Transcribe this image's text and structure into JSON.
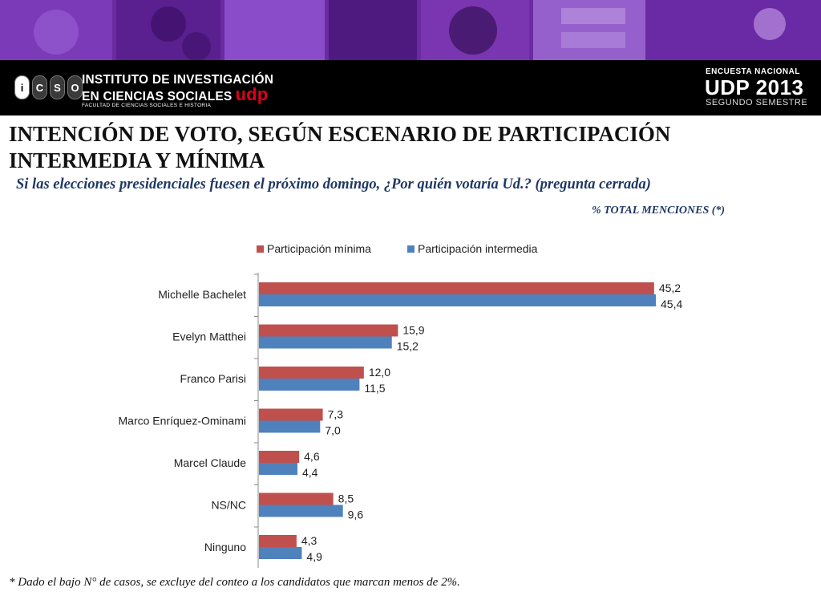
{
  "header": {
    "logo_letters": [
      "i",
      "C",
      "S",
      "O"
    ],
    "institute_line1": "INSTITUTO DE INVESTIGACIÓN",
    "institute_line2": "EN CIENCIAS SOCIALES",
    "institute_brand": "udp",
    "faculty": "FACULTAD DE CIENCIAS SOCIALES E HISTORIA",
    "survey_label": "ENCUESTA NACIONAL",
    "survey_year": "UDP 2013",
    "survey_semester": "SEGUNDO SEMESTRE"
  },
  "title": "INTENCIÓN DE VOTO, SEGÚN ESCENARIO DE PARTICIPACIÓN INTERMEDIA Y MÍNIMA",
  "subtitle": "Si las elecciones presidenciales fuesen el próximo domingo, ¿Por quién votaría Ud.? (pregunta cerrada)",
  "note": "% TOTAL MENCIONES (*)",
  "footnote": "* Dado el bajo N° de casos, se excluye del conteo a los candidatos que marcan menos de 2%.",
  "colors": {
    "minima": "#c0504d",
    "intermedia": "#4f81bd",
    "banner": "#6a2ba0"
  },
  "chart_data": {
    "type": "bar",
    "orientation": "horizontal",
    "categories": [
      "Michelle Bachelet",
      "Evelyn Matthei",
      "Franco Parisi",
      "Marco Enríquez-Ominami",
      "Marcel Claude",
      "NS/NC",
      "Ninguno"
    ],
    "series": [
      {
        "name": "Participación mínima",
        "values": [
          45.2,
          15.9,
          12.0,
          7.3,
          4.6,
          8.5,
          4.3
        ],
        "labels": [
          "45,2",
          "15,9",
          "12,0",
          "7,3",
          "4,6",
          "8,5",
          "4,3"
        ]
      },
      {
        "name": "Participación intermedia",
        "values": [
          45.4,
          15.2,
          11.5,
          7.0,
          4.4,
          9.6,
          4.9
        ],
        "labels": [
          "45,4",
          "15,2",
          "11,5",
          "7,0",
          "4,4",
          "9,6",
          "4,9"
        ]
      }
    ],
    "xlim": [
      0,
      50
    ],
    "legend": "top",
    "grid": false
  }
}
